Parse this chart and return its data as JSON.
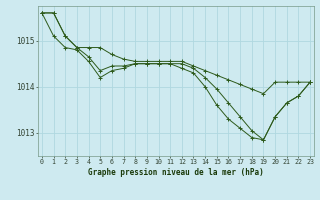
{
  "title": "Graphe pression niveau de la mer (hPa)",
  "background_color": "#ceeaf0",
  "grid_color": "#b0d8e0",
  "line_color": "#2d5a1b",
  "x_labels": [
    "0",
    "1",
    "2",
    "3",
    "4",
    "5",
    "6",
    "7",
    "8",
    "9",
    "10",
    "11",
    "12",
    "13",
    "14",
    "15",
    "16",
    "17",
    "18",
    "19",
    "20",
    "21",
    "22",
    "23"
  ],
  "x_values": [
    0,
    1,
    2,
    3,
    4,
    5,
    6,
    7,
    8,
    9,
    10,
    11,
    12,
    13,
    14,
    15,
    16,
    17,
    18,
    19,
    20,
    21,
    22,
    23
  ],
  "ylim": [
    1012.5,
    1015.75
  ],
  "yticks": [
    1013,
    1014,
    1015
  ],
  "series": [
    [
      1015.6,
      1015.6,
      1015.1,
      1014.85,
      1014.85,
      1014.85,
      1014.7,
      1014.6,
      1014.55,
      1014.55,
      1014.55,
      1014.55,
      1014.55,
      1014.45,
      1014.35,
      1014.25,
      1014.15,
      1014.05,
      1013.95,
      1013.85,
      1014.1,
      1014.1,
      1014.1,
      1014.1
    ],
    [
      1015.6,
      1015.6,
      1015.1,
      1014.85,
      1014.65,
      1014.35,
      1014.45,
      1014.45,
      1014.5,
      1014.5,
      1014.5,
      1014.5,
      1014.5,
      1014.4,
      1014.2,
      1013.95,
      1013.65,
      1013.35,
      1013.05,
      1012.85,
      1013.35,
      1013.65,
      1013.8,
      1014.1
    ],
    [
      1015.6,
      1015.1,
      1014.85,
      1014.8,
      1014.55,
      1014.2,
      1014.35,
      1014.4,
      1014.5,
      1014.5,
      1014.5,
      1014.5,
      1014.4,
      1014.3,
      1014.0,
      1013.6,
      1013.3,
      1013.1,
      1012.9,
      1012.85,
      1013.35,
      1013.65,
      1013.8,
      1014.1
    ]
  ]
}
